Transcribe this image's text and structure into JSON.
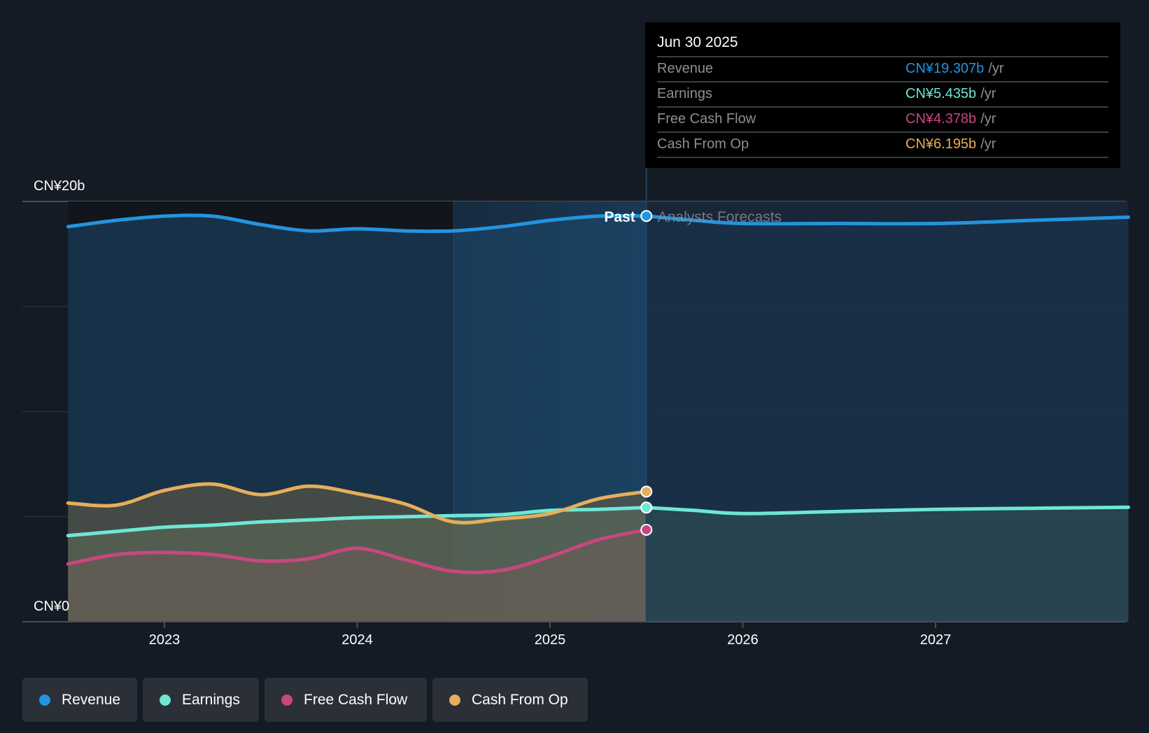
{
  "tooltip": {
    "date": "Jun 30 2025",
    "rows": [
      {
        "label": "Revenue",
        "value": "CN¥19.307b",
        "unit": "/yr",
        "color": "#2394df"
      },
      {
        "label": "Earnings",
        "value": "CN¥5.435b",
        "unit": "/yr",
        "color": "#6ee7d5"
      },
      {
        "label": "Free Cash Flow",
        "value": "CN¥4.378b",
        "unit": "/yr",
        "color": "#c8477f"
      },
      {
        "label": "Cash From Op",
        "value": "CN¥6.195b",
        "unit": "/yr",
        "color": "#e6ae5a"
      }
    ]
  },
  "legend": [
    {
      "label": "Revenue",
      "color": "#2394df"
    },
    {
      "label": "Earnings",
      "color": "#6ee7d5"
    },
    {
      "label": "Free Cash Flow",
      "color": "#c8477f"
    },
    {
      "label": "Cash From Op",
      "color": "#e6ae5a"
    }
  ],
  "labels": {
    "past": "Past",
    "forecast": "Analysts Forecasts"
  },
  "chart_data": {
    "type": "area",
    "title": "",
    "xlabel": "",
    "ylabel": "",
    "currency": "CN¥",
    "y_unit": "b",
    "ylim": [
      0,
      20
    ],
    "xlim": [
      2022.3,
      2028.0
    ],
    "y_tick_labels": [
      {
        "value": 20,
        "label": "CN¥20b"
      },
      {
        "value": 0,
        "label": "CN¥0"
      }
    ],
    "y_gridlines": [
      0,
      5,
      10,
      15,
      20
    ],
    "x_ticks": [
      2023,
      2024,
      2025,
      2026,
      2027
    ],
    "x_tick_labels": [
      "2023",
      "2024",
      "2025",
      "2026",
      "2027"
    ],
    "now": 2025.5,
    "highlight_band": [
      2024.5,
      2025.5
    ],
    "series": [
      {
        "name": "Revenue",
        "color": "#2394df",
        "past": [
          [
            2022.5,
            18.8
          ],
          [
            2022.75,
            19.1
          ],
          [
            2023.0,
            19.3
          ],
          [
            2023.25,
            19.3
          ],
          [
            2023.5,
            18.9
          ],
          [
            2023.75,
            18.6
          ],
          [
            2024.0,
            18.7
          ],
          [
            2024.25,
            18.6
          ],
          [
            2024.5,
            18.6
          ],
          [
            2024.75,
            18.8
          ],
          [
            2025.0,
            19.1
          ],
          [
            2025.25,
            19.3
          ],
          [
            2025.5,
            19.307
          ]
        ],
        "forecast": [
          [
            2025.5,
            19.307
          ],
          [
            2025.75,
            19.1
          ],
          [
            2026.0,
            18.95
          ],
          [
            2026.5,
            18.95
          ],
          [
            2027.0,
            18.95
          ],
          [
            2027.5,
            19.1
          ],
          [
            2028.0,
            19.25
          ]
        ]
      },
      {
        "name": "Earnings",
        "color": "#6ee7d5",
        "past": [
          [
            2022.5,
            4.1
          ],
          [
            2022.75,
            4.3
          ],
          [
            2023.0,
            4.5
          ],
          [
            2023.25,
            4.6
          ],
          [
            2023.5,
            4.75
          ],
          [
            2023.75,
            4.85
          ],
          [
            2024.0,
            4.95
          ],
          [
            2024.25,
            5.0
          ],
          [
            2024.5,
            5.05
          ],
          [
            2024.75,
            5.1
          ],
          [
            2025.0,
            5.3
          ],
          [
            2025.25,
            5.35
          ],
          [
            2025.5,
            5.435
          ]
        ],
        "forecast": [
          [
            2025.5,
            5.435
          ],
          [
            2025.75,
            5.3
          ],
          [
            2026.0,
            5.15
          ],
          [
            2026.5,
            5.25
          ],
          [
            2027.0,
            5.35
          ],
          [
            2027.5,
            5.4
          ],
          [
            2028.0,
            5.45
          ]
        ]
      },
      {
        "name": "Free Cash Flow",
        "color": "#c8477f",
        "past": [
          [
            2022.5,
            2.75
          ],
          [
            2022.75,
            3.2
          ],
          [
            2023.0,
            3.3
          ],
          [
            2023.25,
            3.2
          ],
          [
            2023.5,
            2.9
          ],
          [
            2023.75,
            3.0
          ],
          [
            2024.0,
            3.5
          ],
          [
            2024.25,
            2.95
          ],
          [
            2024.5,
            2.4
          ],
          [
            2024.75,
            2.45
          ],
          [
            2025.0,
            3.1
          ],
          [
            2025.25,
            3.9
          ],
          [
            2025.5,
            4.378
          ]
        ],
        "forecast": []
      },
      {
        "name": "Cash From Op",
        "color": "#e6ae5a",
        "past": [
          [
            2022.5,
            5.65
          ],
          [
            2022.75,
            5.55
          ],
          [
            2023.0,
            6.25
          ],
          [
            2023.25,
            6.55
          ],
          [
            2023.5,
            6.05
          ],
          [
            2023.75,
            6.45
          ],
          [
            2024.0,
            6.1
          ],
          [
            2024.25,
            5.6
          ],
          [
            2024.5,
            4.75
          ],
          [
            2024.75,
            4.9
          ],
          [
            2025.0,
            5.15
          ],
          [
            2025.25,
            5.85
          ],
          [
            2025.5,
            6.195
          ]
        ],
        "forecast": []
      }
    ]
  }
}
